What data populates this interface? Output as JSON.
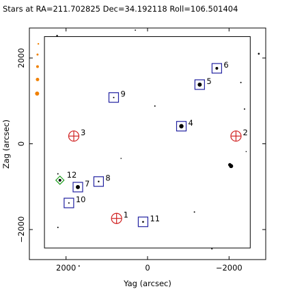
{
  "chart_data": {
    "type": "scatter",
    "title": "Stars at RA=211.702825 Dec=34.192118 Roll=106.501404",
    "xlabel": "Yag (arcsec)",
    "ylabel": "Zag (arcsec)",
    "xlim": [
      2900,
      -2900
    ],
    "ylim": [
      -2700,
      2700
    ],
    "x_ticks": [
      {
        "value": 2000,
        "label": "2000"
      },
      {
        "value": 0,
        "label": "0"
      },
      {
        "value": -2000,
        "label": "−2000"
      }
    ],
    "y_ticks": [
      {
        "value": 2000,
        "label": "2000"
      },
      {
        "value": 0,
        "label": "0"
      },
      {
        "value": -2000,
        "label": "−2000"
      }
    ],
    "fov_box": {
      "x_min": -2520,
      "x_max": 2530,
      "z_min": -2430,
      "z_max": 2500
    },
    "colors": {
      "guide": "#2020a0",
      "acq": "#2020a0",
      "fid": "#d02020",
      "mon": "#20a020",
      "orange": "#f08000",
      "label": "#cc1010"
    },
    "guide_stars": [
      {
        "id": "4",
        "x": -830,
        "y": 410
      },
      {
        "id": "5",
        "x": -1280,
        "y": 1380
      },
      {
        "id": "6",
        "x": -1700,
        "y": 1760
      },
      {
        "id": "7",
        "x": 1710,
        "y": -1010
      },
      {
        "id": "8",
        "x": 1200,
        "y": -880
      },
      {
        "id": "9",
        "x": 830,
        "y": 1080
      },
      {
        "id": "10",
        "x": 1930,
        "y": -1380
      },
      {
        "id": "11",
        "x": 110,
        "y": -1820
      }
    ],
    "fid_lights": [
      {
        "id": "1",
        "x": 760,
        "y": -1740
      },
      {
        "id": "2",
        "x": -2170,
        "y": 180
      },
      {
        "id": "3",
        "x": 1810,
        "y": 180
      }
    ],
    "monitor_windows": [
      {
        "id": "12",
        "x": 2150,
        "y": -850
      }
    ],
    "stars": [
      {
        "x": -830,
        "y": 410,
        "size": 3.2
      },
      {
        "x": -1280,
        "y": 1380,
        "size": 3.0
      },
      {
        "x": -1700,
        "y": 1760,
        "size": 2.0
      },
      {
        "x": 1710,
        "y": -1010,
        "size": 3.0
      },
      {
        "x": 1200,
        "y": -880,
        "size": 1.2
      },
      {
        "x": 830,
        "y": 1080,
        "size": 1.0
      },
      {
        "x": 1930,
        "y": -1380,
        "size": 1.0
      },
      {
        "x": 110,
        "y": -1820,
        "size": 1.3
      },
      {
        "x": 2150,
        "y": -850,
        "size": 2.0
      },
      {
        "x": -2050,
        "y": -520,
        "size": 3.0
      },
      {
        "x": -2020,
        "y": -490,
        "size": 2.5
      },
      {
        "x": -2730,
        "y": 2100,
        "size": 1.3
      },
      {
        "x": -2290,
        "y": 1430,
        "size": 1.0
      },
      {
        "x": -2380,
        "y": 810,
        "size": 1.0
      },
      {
        "x": -2420,
        "y": -180,
        "size": 0.8
      },
      {
        "x": -180,
        "y": 880,
        "size": 1.0
      },
      {
        "x": 650,
        "y": -340,
        "size": 0.8
      },
      {
        "x": -1150,
        "y": -1590,
        "size": 1.0
      },
      {
        "x": -1580,
        "y": -2450,
        "size": 1.0
      },
      {
        "x": 2200,
        "y": -1950,
        "size": 1.0
      },
      {
        "x": 1680,
        "y": -2850,
        "size": 1.0
      },
      {
        "x": 2220,
        "y": 2520,
        "size": 1.2
      },
      {
        "x": 2200,
        "y": -700,
        "size": 1.0
      },
      {
        "x": 300,
        "y": 2650,
        "size": 0.9
      }
    ],
    "orange_stars": [
      {
        "x": 2680,
        "y": 2330,
        "size": 1.2
      },
      {
        "x": 2700,
        "y": 2080,
        "size": 1.5
      },
      {
        "x": 2700,
        "y": 1800,
        "size": 2.0
      },
      {
        "x": 2700,
        "y": 1500,
        "size": 2.5
      },
      {
        "x": 2710,
        "y": 1170,
        "size": 3.0
      }
    ]
  }
}
